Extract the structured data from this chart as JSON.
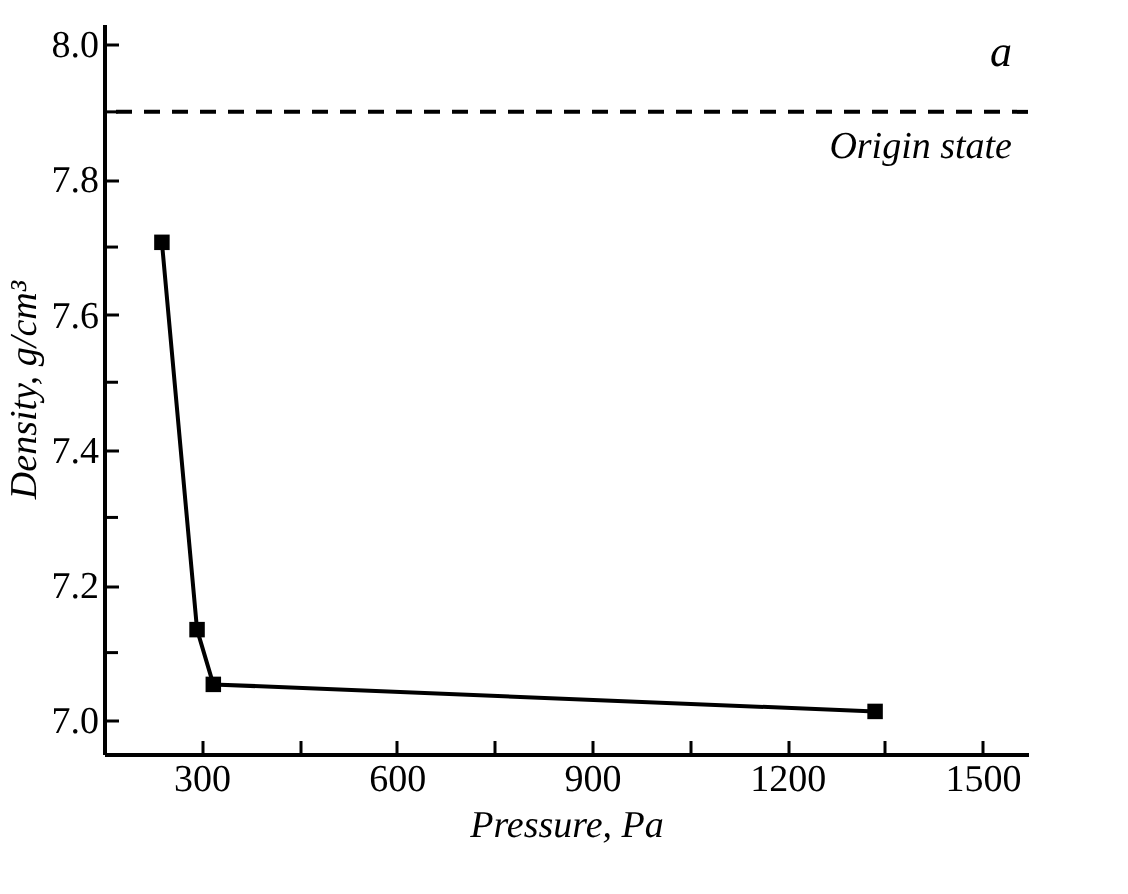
{
  "chart_data": {
    "type": "line",
    "xlabel": "Pressure, Pa",
    "ylabel": "Density, g/cm³",
    "x": [
      239,
      293,
      318,
      1335
    ],
    "series": [
      {
        "color": "#000000",
        "values": [
          7.707,
          7.134,
          7.053,
          7.013
        ]
      }
    ],
    "marker": "square",
    "line_style": "solid",
    "xlim": [
      150,
      1570
    ],
    "ylim": [
      6.95,
      8.03
    ],
    "xticks": [
      300,
      {
        "value": 450,
        "label": null
      },
      600,
      {
        "value": 750,
        "label": null
      },
      900,
      {
        "value": 1050,
        "label": null
      },
      1200,
      {
        "value": 1350,
        "label": null
      },
      1500
    ],
    "yticks": [
      {
        "value": 7.0,
        "label": "7.0"
      },
      {
        "value": 7.1,
        "label": null
      },
      {
        "value": 7.2,
        "label": "7.2"
      },
      {
        "value": 7.3,
        "label": null
      },
      {
        "value": 7.4,
        "label": "7.4"
      },
      {
        "value": 7.5,
        "label": null
      },
      {
        "value": 7.6,
        "label": "7.6"
      },
      {
        "value": 7.7,
        "label": null
      },
      {
        "value": 7.8,
        "label": "7.8"
      },
      {
        "value": 7.9,
        "label": null
      },
      {
        "value": 8.0,
        "label": "8.0"
      }
    ],
    "ref_lines": [
      {
        "axis": "y",
        "value": 7.9,
        "label": "Origin state",
        "color": "#000000",
        "line_style": "dashed"
      }
    ],
    "annotations": [
      "a"
    ],
    "grid": false
  }
}
